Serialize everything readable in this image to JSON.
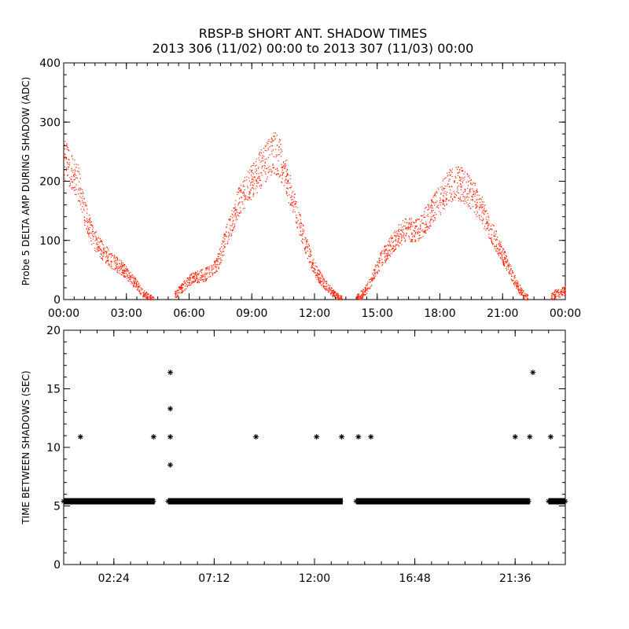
{
  "title_line1": "RBSP-B SHORT ANT. SHADOW TIMES",
  "title_line2": "2013 306 (11/02) 00:00 to 2013 307 (11/03) 00:00",
  "chart_data": [
    {
      "type": "scatter",
      "ylabel": "Probe 5 DELTA AMP DURING SHADOW (ADC)",
      "xlim_hours": [
        0,
        24
      ],
      "ylim": [
        0,
        400
      ],
      "xtick_labels": [
        "00:00",
        "03:00",
        "06:00",
        "09:00",
        "12:00",
        "15:00",
        "18:00",
        "21:00",
        "00:00"
      ],
      "xtick_hours": [
        0,
        3,
        6,
        9,
        12,
        15,
        18,
        21,
        24
      ],
      "ytick_labels": [
        "0",
        "100",
        "200",
        "300",
        "400"
      ],
      "ytick_values": [
        0,
        100,
        200,
        300,
        400
      ],
      "color": "#ff2000",
      "series": [
        {
          "x_hours": [
            0.0,
            0.15,
            0.3,
            0.45,
            0.6,
            0.75,
            0.9,
            1.1,
            1.3,
            1.5,
            1.7,
            1.9,
            2.1,
            2.3,
            2.5,
            2.7,
            2.9,
            3.1,
            3.3,
            3.5,
            3.7,
            3.9,
            4.1,
            4.3
          ],
          "y": [
            240,
            230,
            220,
            212,
            205,
            190,
            160,
            135,
            115,
            100,
            90,
            80,
            73,
            66,
            60,
            55,
            50,
            42,
            33,
            24,
            15,
            8,
            3,
            0
          ]
        },
        {
          "x_hours": [
            5.3,
            5.5,
            5.7,
            5.9,
            6.1,
            6.3,
            6.5,
            6.7,
            6.9,
            7.1,
            7.3,
            7.5,
            7.7,
            7.9,
            8.1,
            8.3,
            8.5,
            8.7,
            8.9,
            9.1,
            9.3,
            9.5,
            9.7,
            9.9,
            10.1,
            10.3,
            10.5,
            10.7,
            10.9,
            11.1,
            11.3,
            11.5,
            11.7,
            11.9,
            12.1,
            12.3,
            12.5,
            12.7,
            12.9,
            13.1,
            13.3
          ],
          "y": [
            8,
            15,
            22,
            30,
            35,
            38,
            40,
            42,
            45,
            50,
            60,
            75,
            100,
            120,
            140,
            160,
            175,
            185,
            195,
            205,
            215,
            225,
            235,
            245,
            250,
            240,
            225,
            200,
            175,
            150,
            125,
            100,
            80,
            60,
            45,
            35,
            25,
            18,
            10,
            5,
            2
          ]
        },
        {
          "x_hours": [
            14.0,
            14.2,
            14.4,
            14.6,
            14.8,
            15.0,
            15.2,
            15.4,
            15.6,
            15.8,
            16.0,
            16.2,
            16.4,
            16.6,
            16.8,
            17.0,
            17.2,
            17.4,
            17.6,
            17.8,
            18.0,
            18.2,
            18.4,
            18.6,
            18.8,
            19.0,
            19.2,
            19.4,
            19.6,
            19.8,
            20.0,
            20.2,
            20.4,
            20.6,
            20.8,
            21.0,
            21.2,
            21.4,
            21.6,
            21.8,
            22.0,
            22.2
          ],
          "y": [
            3,
            8,
            15,
            25,
            40,
            55,
            70,
            80,
            90,
            100,
            108,
            115,
            120,
            118,
            115,
            120,
            130,
            140,
            150,
            160,
            170,
            180,
            190,
            195,
            198,
            195,
            190,
            185,
            175,
            165,
            150,
            135,
            120,
            105,
            90,
            75,
            60,
            45,
            30,
            18,
            8,
            2
          ]
        },
        {
          "x_hours": [
            23.3,
            23.5,
            23.7,
            23.9,
            24.0
          ],
          "y": [
            5,
            10,
            12,
            14,
            16
          ]
        }
      ]
    },
    {
      "type": "scatter",
      "ylabel": "TIME BETWEEN SHADOWS (SEC)",
      "xlim_hours": [
        0,
        24
      ],
      "ylim": [
        0,
        20
      ],
      "xtick_labels": [
        "02:24",
        "07:12",
        "12:00",
        "16:48",
        "21:36"
      ],
      "xtick_hours": [
        2.4,
        7.2,
        12.0,
        16.8,
        21.6
      ],
      "ytick_labels": [
        "0",
        "5",
        "10",
        "15",
        "20"
      ],
      "ytick_values": [
        0,
        5,
        10,
        15,
        20
      ],
      "marker": "*",
      "color": "#000000",
      "baseline_y": 5.4,
      "baseline_ranges_hours": [
        [
          0.0,
          4.35
        ],
        [
          5.0,
          13.35
        ],
        [
          14.0,
          22.3
        ],
        [
          23.2,
          24.0
        ]
      ],
      "outliers": [
        {
          "x_hours": 0.8,
          "y": 10.9
        },
        {
          "x_hours": 4.3,
          "y": 10.9
        },
        {
          "x_hours": 5.1,
          "y": 16.4
        },
        {
          "x_hours": 5.1,
          "y": 13.3
        },
        {
          "x_hours": 5.1,
          "y": 10.9
        },
        {
          "x_hours": 5.1,
          "y": 8.5
        },
        {
          "x_hours": 9.2,
          "y": 10.9
        },
        {
          "x_hours": 12.1,
          "y": 10.9
        },
        {
          "x_hours": 13.3,
          "y": 10.9
        },
        {
          "x_hours": 14.1,
          "y": 10.9
        },
        {
          "x_hours": 14.7,
          "y": 10.9
        },
        {
          "x_hours": 21.6,
          "y": 10.9
        },
        {
          "x_hours": 22.3,
          "y": 10.9
        },
        {
          "x_hours": 22.45,
          "y": 16.4
        },
        {
          "x_hours": 23.3,
          "y": 10.9
        }
      ]
    }
  ]
}
